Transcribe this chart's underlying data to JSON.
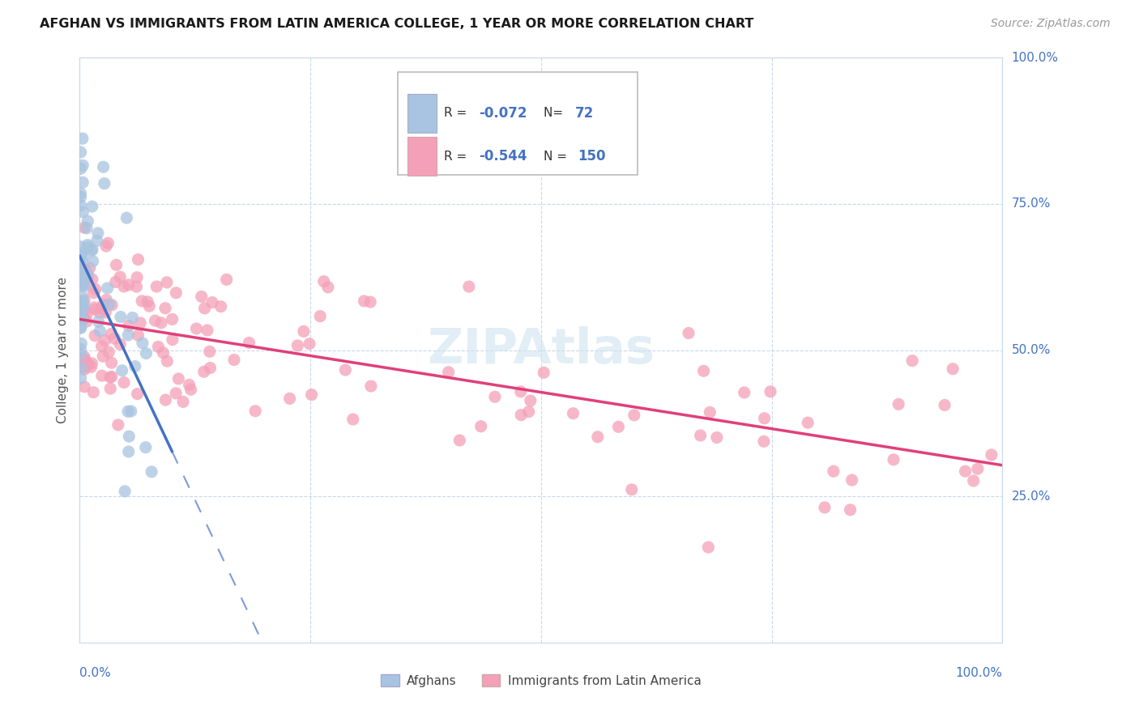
{
  "title": "AFGHAN VS IMMIGRANTS FROM LATIN AMERICA COLLEGE, 1 YEAR OR MORE CORRELATION CHART",
  "source": "Source: ZipAtlas.com",
  "ylabel": "College, 1 year or more",
  "legend_label1": "Afghans",
  "legend_label2": "Immigrants from Latin America",
  "r1": -0.072,
  "n1": 72,
  "r2": -0.544,
  "n2": 150,
  "watermark": "ZIPAtlas",
  "color_afghan": "#a8c4e0",
  "color_latin": "#f4a0b8",
  "color_afghan_line": "#4472c4",
  "color_latin_line": "#e0407a",
  "color_text_blue": "#4472c4",
  "color_grid": "#c8d8ea",
  "background": "#ffffff",
  "afghan_seed": 42,
  "latin_seed": 99
}
